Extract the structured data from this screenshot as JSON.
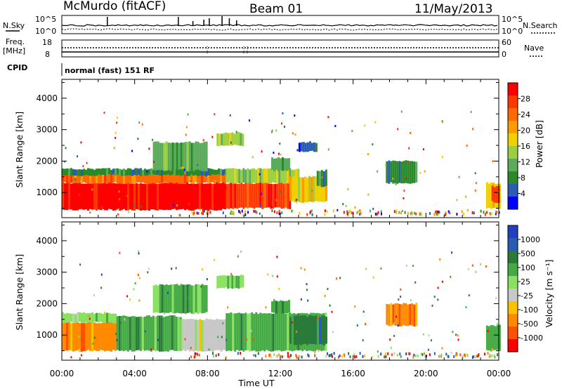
{
  "header": {
    "station": "McMurdo (fitACF)",
    "beam": "Beam 01",
    "date": "11/May/2013"
  },
  "status_panel": {
    "nsky_label": "N.Sky",
    "nsky_ticks": [
      "10^5",
      "10^0"
    ],
    "nsearch_label": "N.Search",
    "freq_label": "Freq.",
    "freq_unit": "[MHz]",
    "freq_ticks": [
      "18",
      "8"
    ],
    "nave_label": "Nave",
    "nave_ticks": [
      "60",
      "0"
    ],
    "cpid_label": "CPID",
    "cpid_value": "normal (fast) 151 RF"
  },
  "colors": {
    "power_scale": [
      "#0000ff",
      "#2a5cb4",
      "#2a8a2a",
      "#5caa5c",
      "#9ad040",
      "#f0d000",
      "#ff9a00",
      "#ff6a00",
      "#ff3800",
      "#ff0000"
    ],
    "velocity_scale": [
      "#ff0000",
      "#ff5000",
      "#ff8a00",
      "#ffc000",
      "#c8c8c8",
      "#8ae060",
      "#44aa44",
      "#2a7a3a",
      "#2a5cb4",
      "#2040c0"
    ]
  },
  "chart_data": [
    {
      "type": "heatmap",
      "panel": "power",
      "ylabel": "Slant Range [km]",
      "y_ticks": [
        1000,
        2000,
        3000,
        4000
      ],
      "ylim": [
        200,
        4600
      ],
      "colorbar_label": "Power [dB]",
      "colorbar_ticks": [
        "4",
        "8",
        "12",
        "16",
        "20",
        "24",
        "28"
      ],
      "regions": [
        {
          "t0": 0.0,
          "t1": 9.0,
          "r0": 450,
          "r1": 1300,
          "level": 9
        },
        {
          "t0": 0.0,
          "t1": 9.0,
          "r0": 1300,
          "r1": 1650,
          "level": 7
        },
        {
          "t0": 0.0,
          "t1": 9.0,
          "r0": 1550,
          "r1": 1750,
          "level": 2
        },
        {
          "t0": 9.0,
          "t1": 12.5,
          "r0": 500,
          "r1": 1300,
          "level": 8
        },
        {
          "t0": 9.0,
          "t1": 13.0,
          "r0": 1300,
          "r1": 1750,
          "level": 4
        },
        {
          "t0": 12.5,
          "t1": 14.5,
          "r0": 700,
          "r1": 1500,
          "level": 5
        },
        {
          "t0": 14.0,
          "t1": 14.5,
          "r0": 1200,
          "r1": 1700,
          "level": 2
        },
        {
          "t0": 5.0,
          "t1": 8.0,
          "r0": 1700,
          "r1": 2600,
          "level": 3
        },
        {
          "t0": 8.5,
          "t1": 10.0,
          "r0": 2500,
          "r1": 2900,
          "level": 4
        },
        {
          "t0": 11.5,
          "t1": 12.5,
          "r0": 1700,
          "r1": 2100,
          "level": 3
        },
        {
          "t0": 13.0,
          "t1": 14.0,
          "r0": 2300,
          "r1": 2600,
          "level": 1
        },
        {
          "t0": 17.8,
          "t1": 19.5,
          "r0": 1300,
          "r1": 2000,
          "level": 2
        },
        {
          "t0": 23.3,
          "t1": 24.0,
          "r0": 500,
          "r1": 1300,
          "level": 5
        },
        {
          "t0": 23.6,
          "t1": 24.0,
          "r0": 700,
          "r1": 1200,
          "level": 8
        }
      ]
    },
    {
      "type": "heatmap",
      "panel": "velocity",
      "ylabel": "Slant Range [km]",
      "y_ticks": [
        1000,
        2000,
        3000,
        4000
      ],
      "ylim": [
        200,
        4600
      ],
      "colorbar_label": "Velocity [m s⁻¹]",
      "colorbar_ticks": [
        "-1000",
        "-500",
        "-100",
        "-25",
        "25",
        "100",
        "500",
        "1000"
      ],
      "regions": [
        {
          "t0": 0.0,
          "t1": 3.0,
          "r0": 500,
          "r1": 1400,
          "level": 2
        },
        {
          "t0": 0.0,
          "t1": 3.0,
          "r0": 1400,
          "r1": 1700,
          "level": 5
        },
        {
          "t0": 3.0,
          "t1": 6.5,
          "r0": 500,
          "r1": 1600,
          "level": 6
        },
        {
          "t0": 6.5,
          "t1": 9.0,
          "r0": 500,
          "r1": 1500,
          "level": 4
        },
        {
          "t0": 9.0,
          "t1": 14.5,
          "r0": 500,
          "r1": 1700,
          "level": 6
        },
        {
          "t0": 12.5,
          "t1": 14.5,
          "r0": 700,
          "r1": 1600,
          "level": 7
        },
        {
          "t0": 5.0,
          "t1": 8.0,
          "r0": 1700,
          "r1": 2600,
          "level": 6
        },
        {
          "t0": 8.5,
          "t1": 10.0,
          "r0": 2500,
          "r1": 2900,
          "level": 5
        },
        {
          "t0": 11.5,
          "t1": 12.5,
          "r0": 1700,
          "r1": 2100,
          "level": 6
        },
        {
          "t0": 17.8,
          "t1": 19.5,
          "r0": 1300,
          "r1": 2000,
          "level": 2
        },
        {
          "t0": 23.3,
          "t1": 24.0,
          "r0": 500,
          "r1": 1300,
          "level": 6
        }
      ]
    }
  ],
  "x_axis": {
    "label": "Time UT",
    "ticks": [
      "00:00",
      "04:00",
      "08:00",
      "12:00",
      "16:00",
      "20:00",
      "00:00"
    ],
    "range_hours": [
      0,
      24
    ]
  }
}
